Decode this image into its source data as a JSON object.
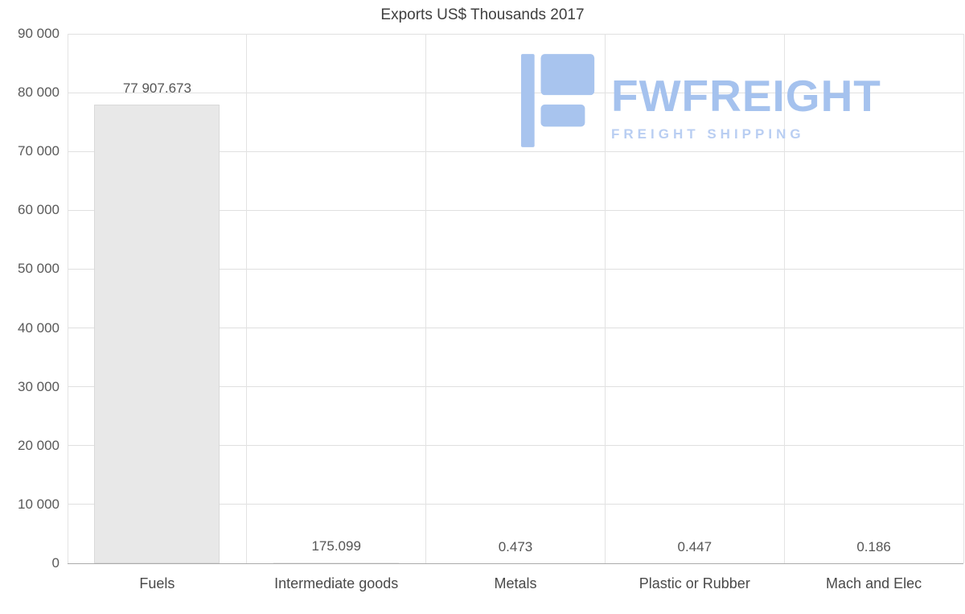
{
  "chart_data": {
    "type": "bar",
    "title": "Exports US$ Thousands 2017",
    "categories": [
      "Fuels",
      "Intermediate goods",
      "Metals",
      "Plastic or Rubber",
      "Mach and Elec"
    ],
    "values": [
      77907.673,
      175.099,
      0.473,
      0.447,
      0.186
    ],
    "value_labels": [
      "77 907.673",
      "175.099",
      "0.473",
      "0.447",
      "0.186"
    ],
    "xlabel": "",
    "ylabel": "",
    "ylim": [
      0,
      90000
    ],
    "ytick_step": 10000,
    "ytick_labels": [
      "0",
      "10 000",
      "20 000",
      "30 000",
      "40 000",
      "50 000",
      "60 000",
      "70 000",
      "80 000",
      "90 000"
    ],
    "grid": true,
    "legend": "none",
    "bar_color": "#e8e8e8",
    "bar_border_color": "#d9d9d9"
  },
  "watermark": {
    "brand": "FWFREIGHT",
    "tagline": "FREIGHT SHIPPING",
    "brand_color": "#a5c2ee",
    "tagline_color": "#b9cef2",
    "glyph_color": "#a8c4ee"
  }
}
